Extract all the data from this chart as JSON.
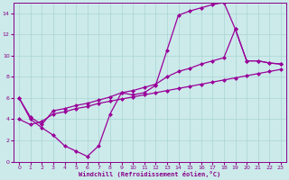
{
  "xlabel": "Windchill (Refroidissement éolien,°C)",
  "bg_color": "#cceaea",
  "line_color": "#990099",
  "xlim": [
    -0.5,
    23.5
  ],
  "ylim": [
    0,
    15
  ],
  "xticks": [
    0,
    1,
    2,
    3,
    4,
    5,
    6,
    7,
    8,
    9,
    10,
    11,
    12,
    13,
    14,
    15,
    16,
    17,
    18,
    19,
    20,
    21,
    22,
    23
  ],
  "yticks": [
    0,
    2,
    4,
    6,
    8,
    10,
    12,
    14
  ],
  "grid_color": "#aad4d4",
  "series1_x": [
    0,
    1,
    2,
    3,
    4,
    5,
    6,
    7,
    8,
    9,
    10,
    11,
    12,
    13,
    14,
    15,
    16,
    17,
    18,
    19,
    20,
    21,
    22,
    23
  ],
  "series1_y": [
    6.0,
    4.0,
    3.2,
    2.5,
    1.5,
    1.0,
    0.5,
    1.5,
    4.5,
    6.5,
    6.3,
    6.5,
    7.2,
    10.5,
    13.8,
    14.2,
    14.5,
    14.8,
    15.0,
    12.5,
    9.5,
    9.5,
    9.3,
    9.2
  ],
  "series2_x": [
    0,
    1,
    2,
    3,
    4,
    5,
    6,
    7,
    8,
    9,
    10,
    11,
    12,
    13,
    14,
    15,
    16,
    17,
    18,
    19,
    20,
    21,
    22,
    23
  ],
  "series2_y": [
    6.0,
    4.2,
    3.5,
    4.8,
    5.0,
    5.3,
    5.5,
    5.8,
    6.1,
    6.5,
    6.7,
    7.0,
    7.3,
    8.0,
    8.5,
    8.8,
    9.2,
    9.5,
    9.8,
    12.5,
    9.5,
    9.5,
    9.3,
    9.2
  ],
  "series3_x": [
    0,
    1,
    2,
    3,
    4,
    5,
    6,
    7,
    8,
    9,
    10,
    11,
    12,
    13,
    14,
    15,
    16,
    17,
    18,
    19,
    20,
    21,
    22,
    23
  ],
  "series3_y": [
    4.0,
    3.5,
    3.8,
    4.5,
    4.7,
    5.0,
    5.2,
    5.5,
    5.7,
    5.9,
    6.1,
    6.3,
    6.5,
    6.7,
    6.9,
    7.1,
    7.3,
    7.5,
    7.7,
    7.9,
    8.1,
    8.3,
    8.5,
    8.7
  ]
}
